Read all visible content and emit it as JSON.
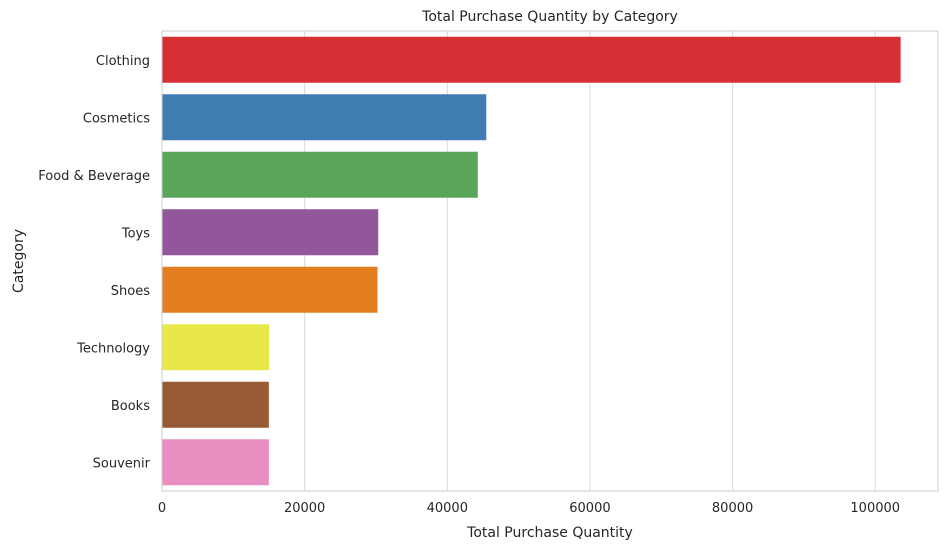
{
  "chart_data": {
    "type": "bar",
    "orientation": "horizontal",
    "title": "Total Purchase Quantity by Category",
    "xlabel": "Total Purchase Quantity",
    "ylabel": "Category",
    "categories": [
      "Clothing",
      "Cosmetics",
      "Food & Beverage",
      "Toys",
      "Shoes",
      "Technology",
      "Books",
      "Souvenir"
    ],
    "values": [
      103558,
      45465,
      44277,
      30321,
      30217,
      15021,
      14982,
      14980
    ],
    "colors": [
      "#d62f35",
      "#3f7db3",
      "#59a65a",
      "#92579b",
      "#e47f1f",
      "#e8e84a",
      "#975a34",
      "#e88ec0"
    ],
    "xlim": [
      0,
      108800
    ],
    "xticks": [
      0,
      20000,
      40000,
      60000,
      80000,
      100000
    ],
    "xtick_labels": [
      "0",
      "20000",
      "40000",
      "60000",
      "80000",
      "100000"
    ],
    "grid": "vertical",
    "legend": "none"
  }
}
